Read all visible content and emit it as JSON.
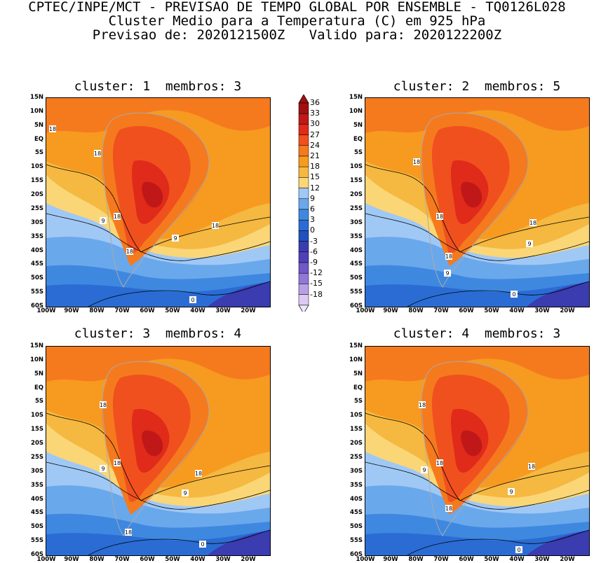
{
  "header": {
    "line1": "CPTEC/INPE/MCT - PREVISAO DE TEMPO GLOBAL POR ENSEMBLE - TQ0126L028",
    "line2": "Cluster Medio para a Temperatura (C) em 925 hPa",
    "line3": "Previsao de: 2020121500Z   Valido para: 2020122200Z"
  },
  "panels": [
    {
      "title": "cluster: 1  membros: 3",
      "labels": [
        "18",
        "18",
        "18",
        "9",
        "18",
        "9",
        "18",
        "0"
      ]
    },
    {
      "title": "cluster: 2  membros: 5",
      "labels": [
        "18",
        "18",
        "9",
        "18",
        "9",
        "18",
        "0"
      ]
    },
    {
      "title": "cluster: 3  membros: 4",
      "labels": [
        "18",
        "18",
        "9",
        "18",
        "9",
        "18",
        "0"
      ]
    },
    {
      "title": "cluster: 4  membros: 3",
      "labels": [
        "18",
        "18",
        "9",
        "18",
        "9",
        "18",
        "0"
      ]
    }
  ],
  "axes": {
    "lat_ticks": [
      "15N",
      "10N",
      "5N",
      "EQ",
      "5S",
      "10S",
      "15S",
      "20S",
      "25S",
      "30S",
      "35S",
      "40S",
      "45S",
      "50S",
      "55S",
      "60S"
    ],
    "lon_ticks": [
      "100W",
      "90W",
      "80W",
      "70W",
      "60W",
      "50W",
      "40W",
      "30W",
      "20W"
    ]
  },
  "colorbar": {
    "labels": [
      "36",
      "33",
      "30",
      "27",
      "24",
      "21",
      "18",
      "15",
      "12",
      "9",
      "6",
      "3",
      "0",
      "-3",
      "-6",
      "-9",
      "-12",
      "-15",
      "-18"
    ],
    "colors": [
      "#a01010",
      "#c01818",
      "#e02a1a",
      "#f0501e",
      "#f57a1e",
      "#f79a20",
      "#f5b840",
      "#fad677",
      "#a0c8f5",
      "#6aa8ec",
      "#3f88e0",
      "#2a6cd4",
      "#2050c0",
      "#3a3cb0",
      "#5040b8",
      "#7058c8",
      "#9078d8",
      "#b8a0e6",
      "#dccaf4"
    ]
  }
}
